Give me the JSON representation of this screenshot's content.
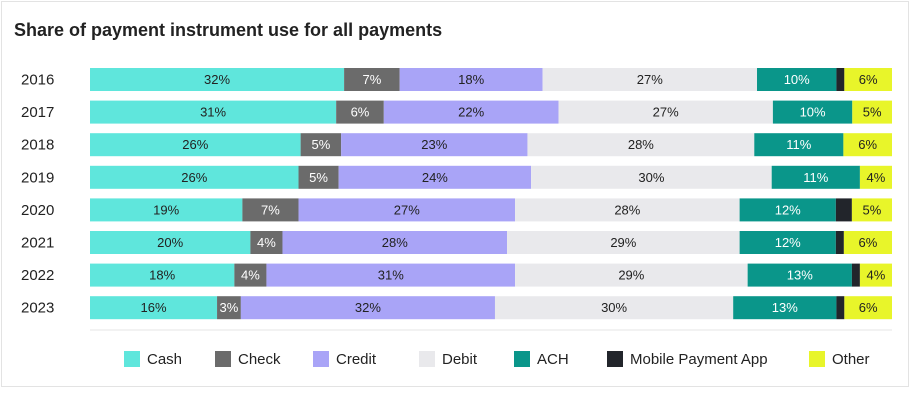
{
  "chart_data": {
    "type": "bar",
    "orientation": "horizontal",
    "stacked": true,
    "title": "Share of payment instrument use for all payments",
    "categories": [
      "2016",
      "2017",
      "2018",
      "2019",
      "2020",
      "2021",
      "2022",
      "2023"
    ],
    "series": [
      {
        "name": "Cash",
        "color": "#5fe6dc",
        "values": [
          32,
          31,
          26,
          26,
          19,
          20,
          18,
          16
        ],
        "labels": [
          "32%",
          "31%",
          "26%",
          "26%",
          "19%",
          "20%",
          "18%",
          "16%"
        ]
      },
      {
        "name": "Check",
        "color": "#6b6b6b",
        "values": [
          7,
          6,
          5,
          5,
          7,
          4,
          4,
          3
        ],
        "labels": [
          "7%",
          "6%",
          "5%",
          "5%",
          "7%",
          "4%",
          "4%",
          "3%"
        ]
      },
      {
        "name": "Credit",
        "color": "#a9a4f7",
        "values": [
          18,
          22,
          23,
          24,
          27,
          28,
          31,
          32
        ],
        "labels": [
          "18%",
          "22%",
          "23%",
          "24%",
          "27%",
          "28%",
          "31%",
          "32%"
        ]
      },
      {
        "name": "Debit",
        "color": "#e9e9ec",
        "values": [
          27,
          27,
          28,
          30,
          28,
          29,
          29,
          30
        ],
        "labels": [
          "27%",
          "27%",
          "28%",
          "30%",
          "28%",
          "29%",
          "29%",
          "30%"
        ]
      },
      {
        "name": "ACH",
        "color": "#0a968a",
        "values": [
          10,
          10,
          11,
          11,
          12,
          12,
          13,
          13
        ],
        "labels": [
          "10%",
          "10%",
          "11%",
          "11%",
          "12%",
          "12%",
          "13%",
          "13%"
        ]
      },
      {
        "name": "Mobile Payment App",
        "color": "#22252b",
        "values": [
          1,
          0,
          0,
          0,
          2,
          1,
          1,
          1
        ],
        "labels": [
          "",
          "",
          "",
          "",
          "",
          "",
          "",
          ""
        ]
      },
      {
        "name": "Other",
        "color": "#e8f52a",
        "values": [
          6,
          5,
          6,
          4,
          5,
          6,
          4,
          6
        ],
        "labels": [
          "6%",
          "5%",
          "6%",
          "4%",
          "5%",
          "6%",
          "4%",
          "6%"
        ]
      }
    ],
    "legend_position": "bottom",
    "grid": false
  }
}
